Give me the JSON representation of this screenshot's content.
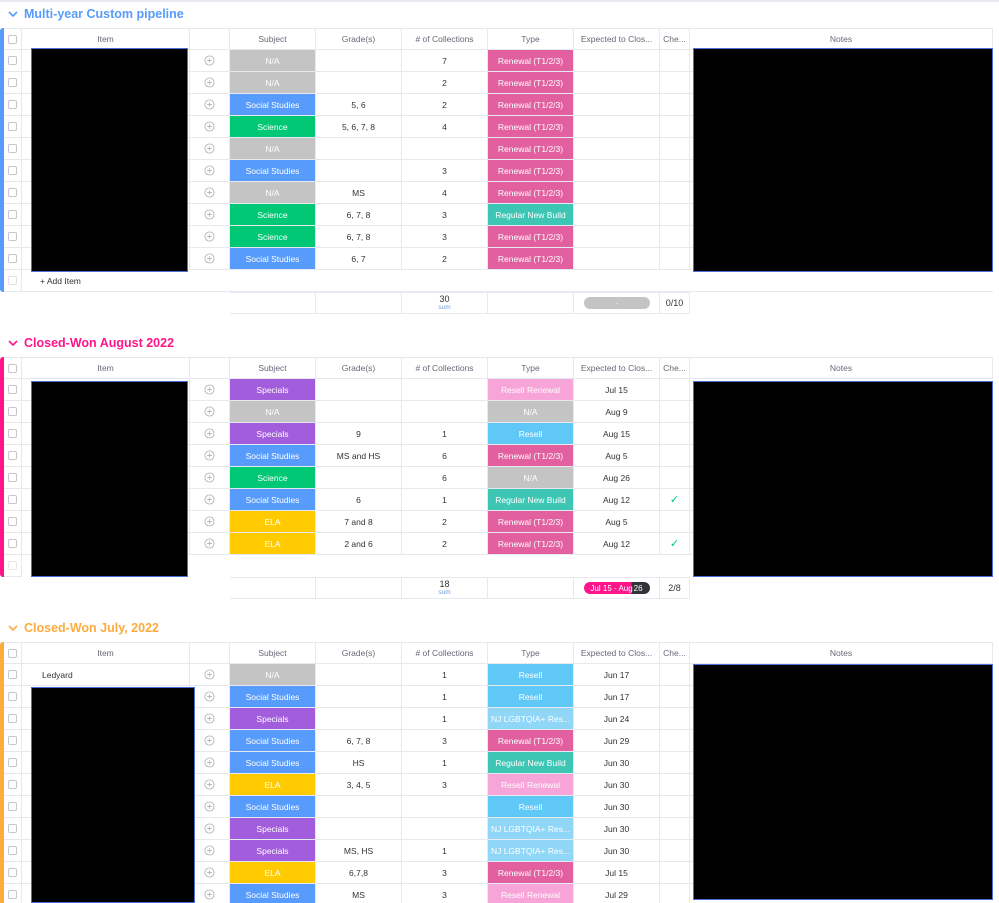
{
  "colors": {
    "N/A": "#c4c4c4",
    "Social Studies": "#579bfc",
    "Science": "#00c875",
    "Specials": "#a25ddc",
    "ELA": "#ffcb00",
    "Renewal (T1/2/3)": "#e2609f",
    "Regular New Build": "#3ec6b5",
    "Resell Renewal": "#f7a4d8",
    "Resell": "#5fc8f7",
    "NJ LGBTQIA+ Res...": "#8fd6f7",
    "type_na": "#c4c4c4",
    "group1_accent": "#579bfc",
    "group2_accent": "#ff158a",
    "group3_accent": "#fdab3d",
    "check_green": "#00c875"
  },
  "columns": {
    "item": "Item",
    "subject": "Subject",
    "grades": "Grade(s)",
    "collections": "# of Collections",
    "type": "Type",
    "expected": "Expected to Clos...",
    "check": "Che...",
    "notes": "Notes"
  },
  "add_item_label": "+ Add Item",
  "sum_label": "sum",
  "groups": [
    {
      "title": "Multi-year Custom pipeline",
      "rows": [
        {
          "item": "",
          "subject": "N/A",
          "grades": "",
          "collections": "7",
          "type": "Renewal (T1/2/3)",
          "expected": "",
          "check": false
        },
        {
          "item": "",
          "subject": "N/A",
          "grades": "",
          "collections": "2",
          "type": "Renewal (T1/2/3)",
          "expected": "",
          "check": false
        },
        {
          "item": "",
          "subject": "Social Studies",
          "grades": "5, 6",
          "collections": "2",
          "type": "Renewal (T1/2/3)",
          "expected": "",
          "check": false
        },
        {
          "item": "",
          "subject": "Science",
          "grades": "5, 6, 7, 8",
          "collections": "4",
          "type": "Renewal (T1/2/3)",
          "expected": "",
          "check": false
        },
        {
          "item": "",
          "subject": "N/A",
          "grades": "",
          "collections": "",
          "type": "Renewal (T1/2/3)",
          "expected": "",
          "check": false
        },
        {
          "item": "",
          "subject": "Social Studies",
          "grades": "",
          "collections": "3",
          "type": "Renewal (T1/2/3)",
          "expected": "",
          "check": false
        },
        {
          "item": "",
          "subject": "N/A",
          "grades": "MS",
          "collections": "4",
          "type": "Renewal (T1/2/3)",
          "expected": "",
          "check": false
        },
        {
          "item": "",
          "subject": "Science",
          "grades": "6, 7, 8",
          "collections": "3",
          "type": "Regular New Build",
          "expected": "",
          "check": false
        },
        {
          "item": "",
          "subject": "Science",
          "grades": "6, 7, 8",
          "collections": "3",
          "type": "Renewal (T1/2/3)",
          "expected": "",
          "check": false
        },
        {
          "item": "",
          "subject": "Social Studies",
          "grades": "6, 7",
          "collections": "2",
          "type": "Renewal (T1/2/3)",
          "expected": "",
          "check": false
        }
      ],
      "summary": {
        "collections_sum": "30",
        "expected_pill": "-",
        "check_count": "0/10"
      }
    },
    {
      "title": "Closed-Won August 2022",
      "rows": [
        {
          "item": "",
          "subject": "Specials",
          "grades": "",
          "collections": "",
          "type": "Resell Renewal",
          "expected": "Jul 15",
          "check": false
        },
        {
          "item": "",
          "subject": "N/A",
          "grades": "",
          "collections": "",
          "type": "N/A",
          "expected": "Aug 9",
          "check": false
        },
        {
          "item": "",
          "subject": "Specials",
          "grades": "9",
          "collections": "1",
          "type": "Resell",
          "expected": "Aug 15",
          "check": false
        },
        {
          "item": "",
          "subject": "Social Studies",
          "grades": "MS and HS",
          "collections": "6",
          "type": "Renewal (T1/2/3)",
          "expected": "Aug 5",
          "check": false
        },
        {
          "item": "",
          "subject": "Science",
          "grades": "",
          "collections": "6",
          "type": "N/A",
          "expected": "Aug 26",
          "check": false
        },
        {
          "item": "",
          "subject": "Social Studies",
          "grades": "6",
          "collections": "1",
          "type": "Regular New Build",
          "expected": "Aug 12",
          "check": true
        },
        {
          "item": "",
          "subject": "ELA",
          "grades": "7 and 8",
          "collections": "2",
          "type": "Renewal (T1/2/3)",
          "expected": "Aug 5",
          "check": false
        },
        {
          "item": "",
          "subject": "ELA",
          "grades": "2 and 6",
          "collections": "2",
          "type": "Renewal (T1/2/3)",
          "expected": "Aug 12",
          "check": true
        }
      ],
      "summary": {
        "collections_sum": "18",
        "expected_pill_left": "Jul 15 - Aug",
        "expected_pill_right": "26",
        "check_count": "2/8"
      }
    },
    {
      "title": "Closed-Won July, 2022",
      "rows": [
        {
          "item": "Ledyard",
          "subject": "N/A",
          "grades": "",
          "collections": "1",
          "type": "Resell",
          "expected": "Jun 17",
          "check": false
        },
        {
          "item": "",
          "subject": "Social Studies",
          "grades": "",
          "collections": "1",
          "type": "Resell",
          "expected": "Jun 17",
          "check": false
        },
        {
          "item": "",
          "subject": "Specials",
          "grades": "",
          "collections": "1",
          "type": "NJ LGBTQIA+ Res...",
          "expected": "Jun 24",
          "check": false
        },
        {
          "item": "",
          "subject": "Social Studies",
          "grades": "6, 7, 8",
          "collections": "3",
          "type": "Renewal (T1/2/3)",
          "expected": "Jun 29",
          "check": false
        },
        {
          "item": "",
          "subject": "Social Studies",
          "grades": "HS",
          "collections": "1",
          "type": "Regular New Build",
          "expected": "Jun 30",
          "check": false
        },
        {
          "item": "",
          "subject": "ELA",
          "grades": "3, 4, 5",
          "collections": "3",
          "type": "Resell Renewal",
          "expected": "Jun 30",
          "check": false
        },
        {
          "item": "",
          "subject": "Social Studies",
          "grades": "",
          "collections": "",
          "type": "Resell",
          "expected": "Jun 30",
          "check": false
        },
        {
          "item": "",
          "subject": "Specials",
          "grades": "",
          "collections": "",
          "type": "NJ LGBTQIA+ Res...",
          "expected": "Jun 30",
          "check": false
        },
        {
          "item": "",
          "subject": "Specials",
          "grades": "MS, HS",
          "collections": "1",
          "type": "NJ LGBTQIA+ Res...",
          "expected": "Jun 30",
          "check": false
        },
        {
          "item": "",
          "subject": "ELA",
          "grades": "6,7,8",
          "collections": "3",
          "type": "Renewal (T1/2/3)",
          "expected": "Jul 15",
          "check": false
        },
        {
          "item": "",
          "subject": "Social Studies",
          "grades": "MS",
          "collections": "3",
          "type": "Resell Renewal",
          "expected": "Jul 29",
          "check": false
        }
      ]
    }
  ]
}
